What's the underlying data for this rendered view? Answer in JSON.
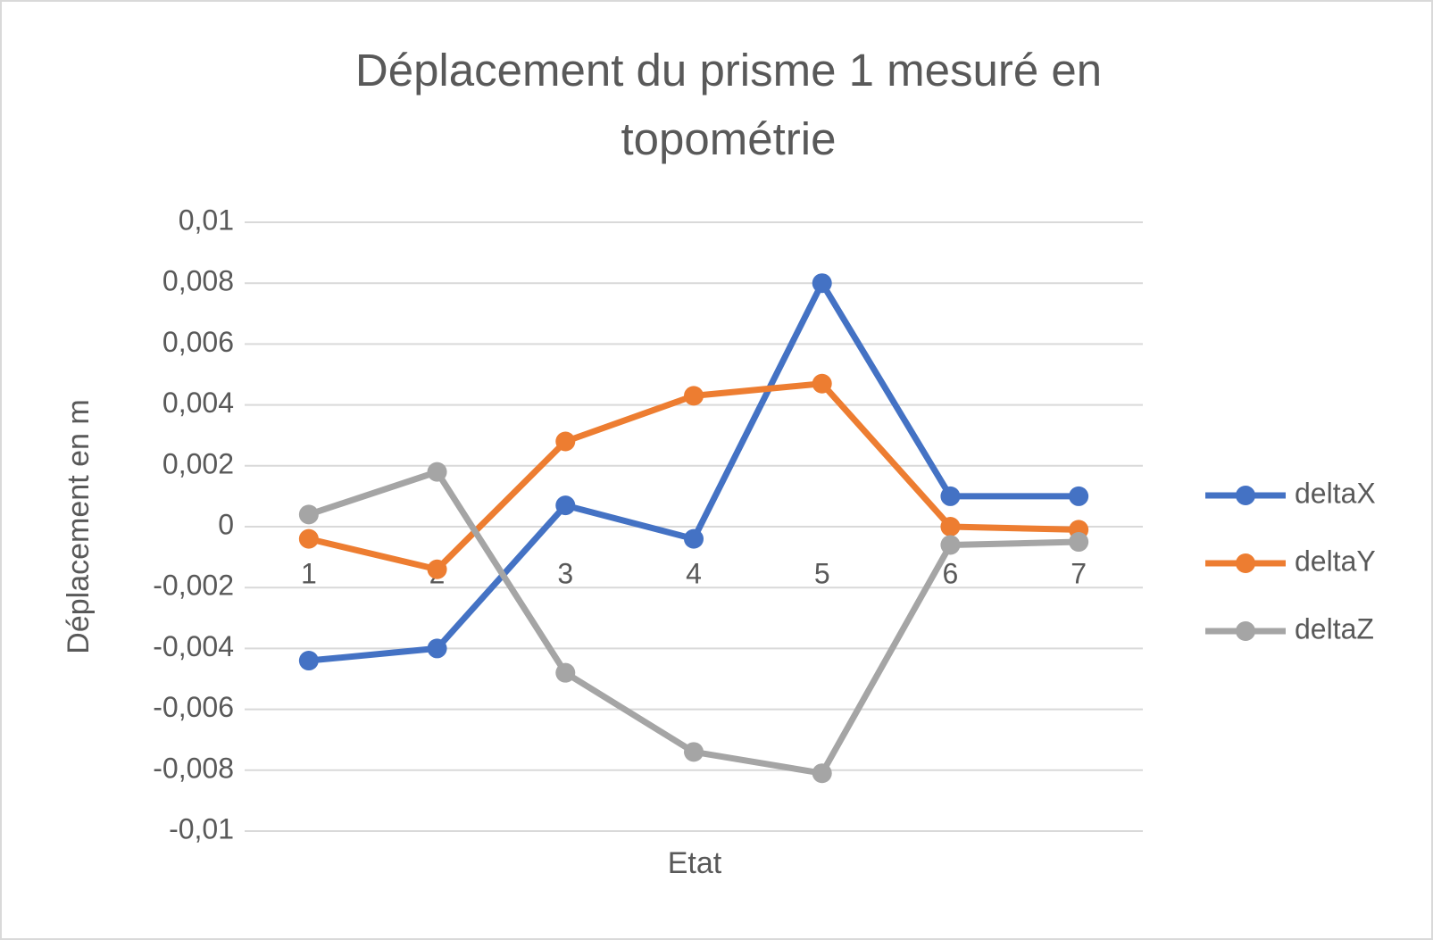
{
  "chart_data": {
    "type": "line",
    "title": "Déplacement du prisme 1 mesuré en topométrie",
    "x_label": "Etat",
    "y_label": "Déplacement en m",
    "categories": [
      "1",
      "2",
      "3",
      "4",
      "5",
      "6",
      "7"
    ],
    "series": [
      {
        "name": "deltaX",
        "color": "#4472c4",
        "values": [
          -0.0044,
          -0.004,
          0.0007,
          -0.0004,
          0.008,
          0.001,
          0.001
        ]
      },
      {
        "name": "deltaY",
        "color": "#ed7d31",
        "values": [
          -0.0004,
          -0.0014,
          0.0028,
          0.0043,
          0.0047,
          0,
          -0.0001
        ]
      },
      {
        "name": "deltaZ",
        "color": "#a5a5a5",
        "values": [
          0.0004,
          0.0018,
          -0.0048,
          -0.0074,
          -0.0081,
          -0.0006,
          -0.0005
        ]
      }
    ],
    "ylim": [
      -0.01,
      0.01
    ],
    "yticks": [
      {
        "value": -0.01,
        "label": "-0,01"
      },
      {
        "value": -0.008,
        "label": "-0,008"
      },
      {
        "value": -0.006,
        "label": "-0,006"
      },
      {
        "value": -0.004,
        "label": "-0,004"
      },
      {
        "value": -0.002,
        "label": "-0,002"
      },
      0,
      {
        "value": 0.002,
        "label": "0,002"
      },
      {
        "value": 0.004,
        "label": "0,004"
      },
      {
        "value": 0.006,
        "label": "0,006"
      },
      {
        "value": 0.008,
        "label": "0,008"
      },
      {
        "value": 0.01,
        "label": "0,01"
      }
    ],
    "grid": true,
    "legend": "right"
  }
}
